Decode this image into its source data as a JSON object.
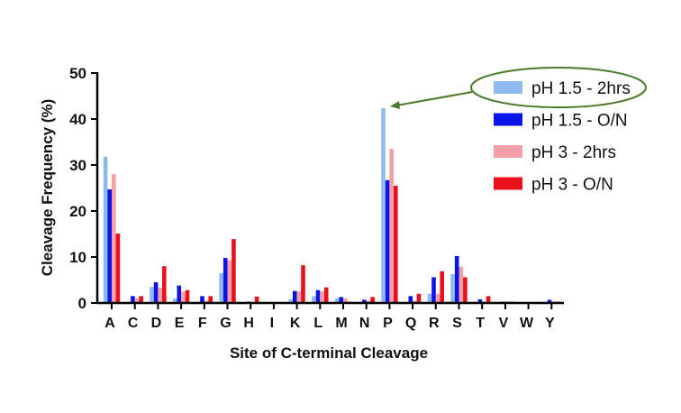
{
  "chart_data": {
    "type": "bar",
    "title": "",
    "xlabel": "Site of C-terminal Cleavage",
    "ylabel": "Cleavage Frequency (%)",
    "ylim": [
      0,
      50
    ],
    "yticks": [
      0,
      10,
      20,
      30,
      40,
      50
    ],
    "grid": false,
    "legend_placement": "right",
    "categories": [
      "A",
      "C",
      "D",
      "E",
      "F",
      "G",
      "H",
      "I",
      "K",
      "L",
      "M",
      "N",
      "P",
      "Q",
      "R",
      "S",
      "T",
      "V",
      "W",
      "Y"
    ],
    "series": [
      {
        "name": "pH 1.5 - 2hrs",
        "color": "#8fbaf0",
        "values": [
          31.8,
          0.2,
          3.5,
          1.0,
          0.3,
          6.5,
          0,
          0,
          0.8,
          1.5,
          1.0,
          0.2,
          42.4,
          0.2,
          2.0,
          6.3,
          0.2,
          0.2,
          0,
          0.2
        ]
      },
      {
        "name": "pH 1.5 - O/N",
        "color": "#0a14e6",
        "values": [
          24.7,
          1.5,
          4.5,
          3.8,
          1.5,
          9.8,
          0.3,
          0,
          2.6,
          2.8,
          1.3,
          0.7,
          26.7,
          1.5,
          5.6,
          10.2,
          0.8,
          0.3,
          0,
          0.7
        ]
      },
      {
        "name": "pH 3 - 2hrs",
        "color": "#f5a0a8",
        "values": [
          28.0,
          1.0,
          3.3,
          2.5,
          0.5,
          9.3,
          0,
          0,
          2.5,
          2.5,
          1.0,
          0.5,
          33.5,
          0.5,
          2.0,
          7.9,
          0.3,
          0.3,
          0,
          0.3
        ]
      },
      {
        "name": "pH 3 - O/N",
        "color": "#e8101a",
        "values": [
          15.1,
          1.5,
          8.0,
          2.8,
          1.5,
          13.9,
          1.4,
          0,
          8.2,
          3.4,
          0.3,
          1.3,
          25.5,
          2.0,
          6.9,
          5.6,
          1.5,
          0.3,
          0,
          0.3
        ]
      }
    ],
    "annotation": {
      "type": "arrow",
      "from_legend_entry": "pH 1.5 - 2hrs",
      "to_category": "P",
      "color": "#4a7a2a"
    }
  }
}
